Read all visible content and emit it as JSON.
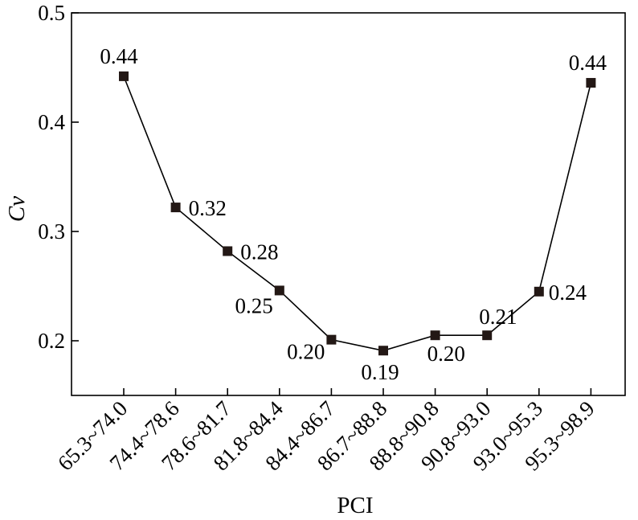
{
  "chart_data": {
    "type": "line",
    "xlabel": "PCI",
    "ylabel": "Cv",
    "categories": [
      "65.3~74.0",
      "74.4~78.6",
      "78.6~81.7",
      "81.8~84.4",
      "84.4~86.7",
      "86.7~88.8",
      "88.8~90.8",
      "90.8~93.0",
      "93.0~95.3",
      "95.3~98.9"
    ],
    "series": [
      {
        "values": [
          0.442,
          0.322,
          0.282,
          0.246,
          0.201,
          0.191,
          0.205,
          0.205,
          0.245,
          0.436
        ],
        "labels": [
          "0.44",
          "0.32",
          "0.28",
          "0.25",
          "0.20",
          "0.19",
          "0.20",
          "0.21",
          "0.24",
          "0.44"
        ]
      }
    ],
    "ylim": [
      0.15,
      0.5
    ],
    "yticks": [
      0.2,
      0.3,
      0.4,
      0.5
    ],
    "ytick_labels": [
      "0.2",
      "0.3",
      "0.4",
      "0.5"
    ],
    "grid": false,
    "legend": "none",
    "colors": {
      "line": "#000000",
      "marker": "#231815"
    }
  }
}
